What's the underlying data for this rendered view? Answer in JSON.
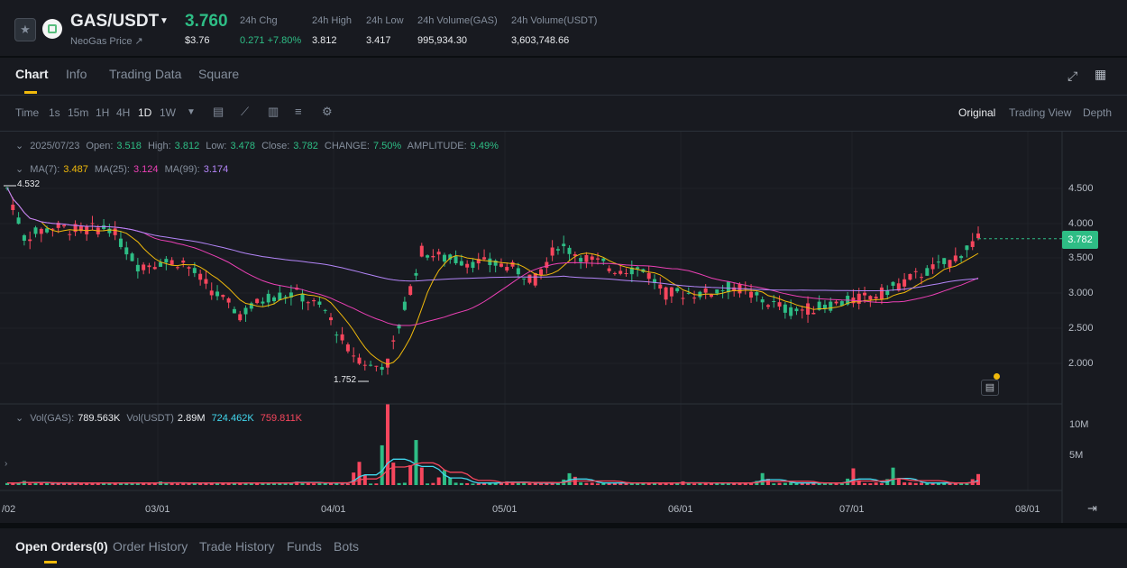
{
  "ticker": {
    "pair": "GAS/USDT",
    "subtitle": "NeoGas Price",
    "price": "3.760",
    "price_usd": "$3.76",
    "stats": [
      {
        "label": "24h Chg",
        "value": "0.271 +7.80%",
        "positive": true
      },
      {
        "label": "24h High",
        "value": "3.812"
      },
      {
        "label": "24h Low",
        "value": "3.417"
      },
      {
        "label": "24h Volume(GAS)",
        "value": "995,934.30"
      },
      {
        "label": "24h Volume(USDT)",
        "value": "3,603,748.66"
      }
    ]
  },
  "tabs": [
    "Chart",
    "Info",
    "Trading Data",
    "Square"
  ],
  "toolbar": {
    "intervals": [
      "Time",
      "1s",
      "15m",
      "1H",
      "4H",
      "1D",
      "1W"
    ],
    "active_interval": "1D",
    "views": [
      "Original",
      "Trading View",
      "Depth"
    ],
    "active_view": "Original"
  },
  "ohlc": {
    "date": "2025/07/23",
    "open_label": "Open:",
    "open": "3.518",
    "high_label": "High:",
    "high": "3.812",
    "low_label": "Low:",
    "low": "3.478",
    "close_label": "Close:",
    "close": "3.782",
    "change_label": "CHANGE:",
    "change": "7.50%",
    "amplitude_label": "AMPLITUDE:",
    "amplitude": "9.49%"
  },
  "ma": {
    "ma7_label": "MA(7):",
    "ma7": "3.487",
    "ma25_label": "MA(25):",
    "ma25": "3.124",
    "ma99_label": "MA(99):",
    "ma99": "3.174"
  },
  "vol": {
    "label": "Vol(GAS):",
    "gas": "789.563K",
    "usdt_label": "Vol(USDT)",
    "usdt": "2.89M",
    "ma1": "724.462K",
    "ma2": "759.811K"
  },
  "price_axis": [
    "4.500",
    "4.000",
    "3.500",
    "3.000",
    "2.500",
    "2.000"
  ],
  "volume_axis": [
    "10M",
    "5M"
  ],
  "date_axis": [
    "/02",
    "03/01",
    "04/01",
    "05/01",
    "06/01",
    "07/01",
    "08/01"
  ],
  "markers": {
    "high": "4.532",
    "low": "1.752",
    "current": "3.782"
  },
  "bottom_tabs": [
    "Open Orders(0)",
    "Order History",
    "Trade History",
    "Funds",
    "Bots"
  ],
  "colors": {
    "up": "#2ebd85",
    "down": "#f6465d",
    "ma7": "#f0b90b",
    "ma25": "#eb40b5",
    "ma99": "#b385f8",
    "accent": "#f0b90b"
  },
  "chart_data": {
    "type": "candlestick",
    "interval": "1D",
    "ylim": [
      1.5,
      5.0
    ],
    "grid": true,
    "legend": "top-left",
    "price_points": [
      [
        "2025-02-02",
        4.5
      ],
      [
        "2025-02-05",
        3.8
      ],
      [
        "2025-02-10",
        3.95
      ],
      [
        "2025-02-15",
        3.9
      ],
      [
        "2025-02-20",
        3.95
      ],
      [
        "2025-02-25",
        3.4
      ],
      [
        "2025-03-01",
        3.45
      ],
      [
        "2025-03-05",
        3.45
      ],
      [
        "2025-03-10",
        3.05
      ],
      [
        "2025-03-15",
        2.7
      ],
      [
        "2025-03-20",
        2.95
      ],
      [
        "2025-03-25",
        3.0
      ],
      [
        "2025-03-30",
        2.75
      ],
      [
        "2025-04-03",
        2.2
      ],
      [
        "2025-04-07",
        1.95
      ],
      [
        "2025-04-10",
        2.0
      ],
      [
        "2025-04-13",
        2.8
      ],
      [
        "2025-04-16",
        3.6
      ],
      [
        "2025-04-20",
        3.5
      ],
      [
        "2025-04-25",
        3.45
      ],
      [
        "2025-05-01",
        3.4
      ],
      [
        "2025-05-06",
        3.2
      ],
      [
        "2025-05-10",
        3.7
      ],
      [
        "2025-05-15",
        3.5
      ],
      [
        "2025-05-20",
        3.35
      ],
      [
        "2025-05-25",
        3.35
      ],
      [
        "2025-05-29",
        3.0
      ],
      [
        "2025-06-05",
        3.0
      ],
      [
        "2025-06-10",
        3.1
      ],
      [
        "2025-06-15",
        2.9
      ],
      [
        "2025-06-20",
        2.75
      ],
      [
        "2025-06-25",
        2.8
      ],
      [
        "2025-07-01",
        2.9
      ],
      [
        "2025-07-06",
        3.0
      ],
      [
        "2025-07-12",
        3.25
      ],
      [
        "2025-07-18",
        3.45
      ],
      [
        "2025-07-23",
        3.782
      ]
    ],
    "volume_points": [
      [
        "2025-02-05",
        0.8
      ],
      [
        "2025-03-01",
        0.6
      ],
      [
        "2025-03-25",
        0.8
      ],
      [
        "2025-04-05",
        4.5
      ],
      [
        "2025-04-10",
        12.0
      ],
      [
        "2025-04-15",
        8.5
      ],
      [
        "2025-04-20",
        3.0
      ],
      [
        "2025-05-01",
        1.0
      ],
      [
        "2025-05-12",
        2.5
      ],
      [
        "2025-06-01",
        0.6
      ],
      [
        "2025-06-15",
        2.2
      ],
      [
        "2025-07-01",
        2.5
      ],
      [
        "2025-07-08",
        2.8
      ],
      [
        "2025-07-23",
        2.0
      ]
    ]
  }
}
